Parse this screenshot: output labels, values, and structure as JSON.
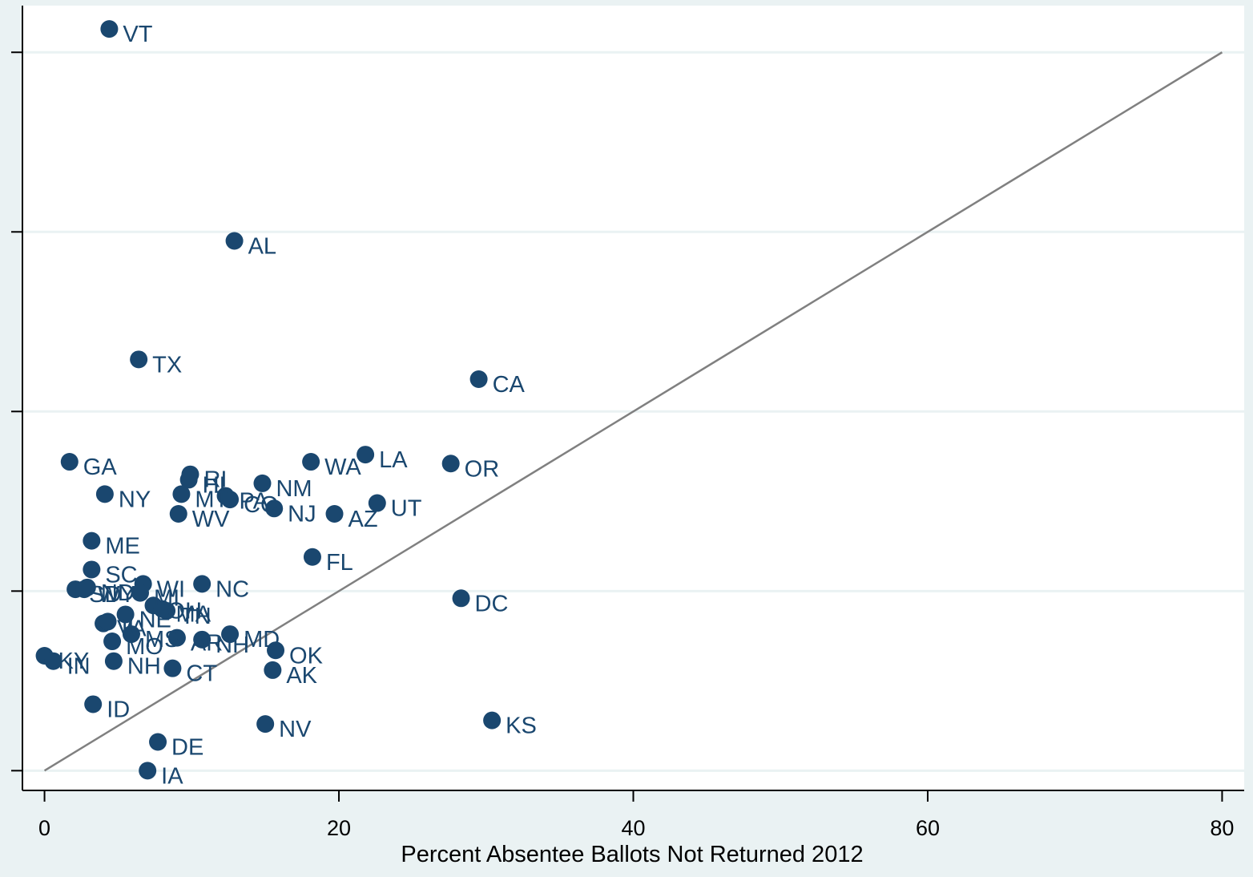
{
  "chart_data": {
    "type": "scatter",
    "title": "",
    "xlabel": "Percent Absentee Ballots Not Returned 2012",
    "ylabel": "",
    "xlim": [
      -1.5,
      81.5
    ],
    "ylim": [
      -1.1,
      42.6
    ],
    "x_ticks": [
      0,
      20,
      40,
      60,
      80
    ],
    "y_ticks": [
      0,
      10,
      20,
      30,
      40
    ],
    "grid": true,
    "legend": "none",
    "reference_line": {
      "x": [
        0,
        80
      ],
      "y": [
        0,
        40
      ]
    },
    "colors": {
      "background": "#eaf2f3",
      "plot_background": "#ffffff",
      "grid": "#eaf2f3",
      "marker": "#1a476f",
      "reference_line": "#808080",
      "axis": "#000000"
    },
    "points": [
      {
        "label": "VT",
        "x": 4.4,
        "y": 41.3
      },
      {
        "label": "AL",
        "x": 12.9,
        "y": 29.5
      },
      {
        "label": "TX",
        "x": 6.4,
        "y": 22.9
      },
      {
        "label": "CA",
        "x": 29.5,
        "y": 21.8
      },
      {
        "label": "GA",
        "x": 1.7,
        "y": 17.2
      },
      {
        "label": "LA",
        "x": 21.8,
        "y": 17.6
      },
      {
        "label": "WA",
        "x": 18.1,
        "y": 17.2
      },
      {
        "label": "OR",
        "x": 27.6,
        "y": 17.1
      },
      {
        "label": "RI",
        "x": 9.9,
        "y": 16.5
      },
      {
        "label": "HI",
        "x": 9.8,
        "y": 16.2
      },
      {
        "label": "NM",
        "x": 14.8,
        "y": 16.0
      },
      {
        "label": "NY",
        "x": 4.1,
        "y": 15.4
      },
      {
        "label": "MT",
        "x": 9.3,
        "y": 15.4
      },
      {
        "label": "PA",
        "x": 12.3,
        "y": 15.3
      },
      {
        "label": "CO",
        "x": 12.6,
        "y": 15.1
      },
      {
        "label": "UT",
        "x": 22.6,
        "y": 14.9
      },
      {
        "label": "NJ",
        "x": 15.6,
        "y": 14.6
      },
      {
        "label": "AZ",
        "x": 19.7,
        "y": 14.3
      },
      {
        "label": "WV",
        "x": 9.1,
        "y": 14.3
      },
      {
        "label": "ME",
        "x": 3.2,
        "y": 12.8
      },
      {
        "label": "FL",
        "x": 18.2,
        "y": 11.9
      },
      {
        "label": "SC",
        "x": 3.2,
        "y": 11.2
      },
      {
        "label": "WI",
        "x": 6.7,
        "y": 10.4
      },
      {
        "label": "NC",
        "x": 10.7,
        "y": 10.4
      },
      {
        "label": "SD",
        "x": 2.1,
        "y": 10.1
      },
      {
        "label": "WY",
        "x": 2.7,
        "y": 10.1
      },
      {
        "label": "ND",
        "x": 2.9,
        "y": 10.2
      },
      {
        "label": "MI",
        "x": 6.5,
        "y": 9.9
      },
      {
        "label": "OH",
        "x": 7.4,
        "y": 9.2
      },
      {
        "label": "DC",
        "x": 28.3,
        "y": 9.6
      },
      {
        "label": "TN",
        "x": 8.3,
        "y": 8.9
      },
      {
        "label": "MA",
        "x": 8.0,
        "y": 9.0
      },
      {
        "label": "NE",
        "x": 5.5,
        "y": 8.7
      },
      {
        "label": "VA",
        "x": 4.0,
        "y": 8.2
      },
      {
        "label": "IL",
        "x": 4.3,
        "y": 8.3
      },
      {
        "label": "MS",
        "x": 5.9,
        "y": 7.6
      },
      {
        "label": "MO",
        "x": 4.6,
        "y": 7.2
      },
      {
        "label": "AR",
        "x": 9.0,
        "y": 7.4
      },
      {
        "label": "NH",
        "x": 10.7,
        "y": 7.3
      },
      {
        "label": "MD",
        "x": 12.6,
        "y": 7.6
      },
      {
        "label": "OK",
        "x": 15.7,
        "y": 6.7
      },
      {
        "label": "KY",
        "x": 0.0,
        "y": 6.4
      },
      {
        "label": "IN",
        "x": 0.6,
        "y": 6.1
      },
      {
        "label": "NH",
        "x": 4.7,
        "y": 6.1
      },
      {
        "label": "CT",
        "x": 8.7,
        "y": 5.7
      },
      {
        "label": "AK",
        "x": 15.5,
        "y": 5.6
      },
      {
        "label": "ID",
        "x": 3.3,
        "y": 3.7
      },
      {
        "label": "KS",
        "x": 30.4,
        "y": 2.8
      },
      {
        "label": "NV",
        "x": 15.0,
        "y": 2.6
      },
      {
        "label": "DE",
        "x": 7.7,
        "y": 1.6
      },
      {
        "label": "IA",
        "x": 7.0,
        "y": 0.0
      }
    ]
  }
}
